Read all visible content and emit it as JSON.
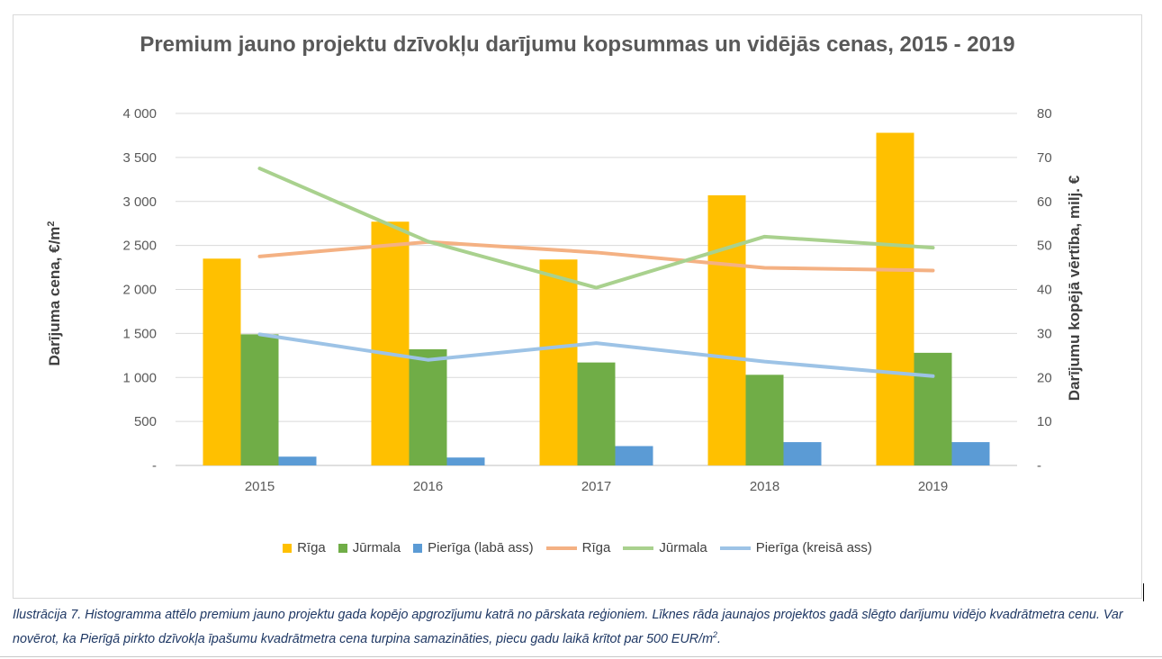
{
  "chart_data": {
    "type": "bar",
    "title": "Premium jauno projektu dzīvokļu darījumu kopsummas un vidējās cenas, 2015 - 2019",
    "categories": [
      "2015",
      "2016",
      "2017",
      "2018",
      "2019"
    ],
    "ylabel": "Darījuma cena, €/m²",
    "y2label": "Darījumu kopējā vērtība, milj. €",
    "ylim": [
      0,
      4000
    ],
    "y2lim": [
      0,
      80
    ],
    "yticks": [
      "-",
      "500",
      "1 000",
      "1 500",
      "2 000",
      "2 500",
      "3 000",
      "3 500",
      "4 000"
    ],
    "y2ticks": [
      "-",
      "10",
      "20",
      "30",
      "40",
      "50",
      "60",
      "70",
      "80"
    ],
    "grid": true,
    "legend_position": "bottom",
    "bar_series": [
      {
        "name": "Rīga",
        "color": "#ffc000",
        "values": [
          2350,
          2770,
          2340,
          3070,
          3780
        ]
      },
      {
        "name": "Jūrmala",
        "color": "#70ad47",
        "values": [
          1490,
          1320,
          1170,
          1030,
          1280
        ]
      },
      {
        "name": "Pierīga (labā ass)",
        "color": "#5b9bd5",
        "values": [
          100,
          90,
          220,
          265,
          265
        ]
      }
    ],
    "line_series": [
      {
        "name": "Rīga",
        "color": "#f4b183",
        "values": [
          47.5,
          50.8,
          48.4,
          44.9,
          44.3
        ]
      },
      {
        "name": "Jūrmala",
        "color": "#a9d18e",
        "values": [
          67.5,
          50.9,
          40.4,
          52.0,
          49.5
        ]
      },
      {
        "name": "Pierīga (kreisā ass)",
        "color": "#9dc3e6",
        "values": [
          29.8,
          24.0,
          27.8,
          23.6,
          20.3
        ]
      }
    ]
  },
  "caption": {
    "text": "Ilustrācija 7. Histogramma attēlo premium jauno projektu gada kopējo apgrozījumu katrā no pārskata reģioniem. Līknes rāda jaunajos projektos gadā slēgto darījumu vidējo kvadrātmetra cenu. Var novērot, ka Pierīgā pirkto dzīvokļa īpašumu kvadrātmetra cena turpina samazināties, piecu gadu laikā krītot par 500 EUR/m",
    "superscript": "2",
    "end": "."
  }
}
